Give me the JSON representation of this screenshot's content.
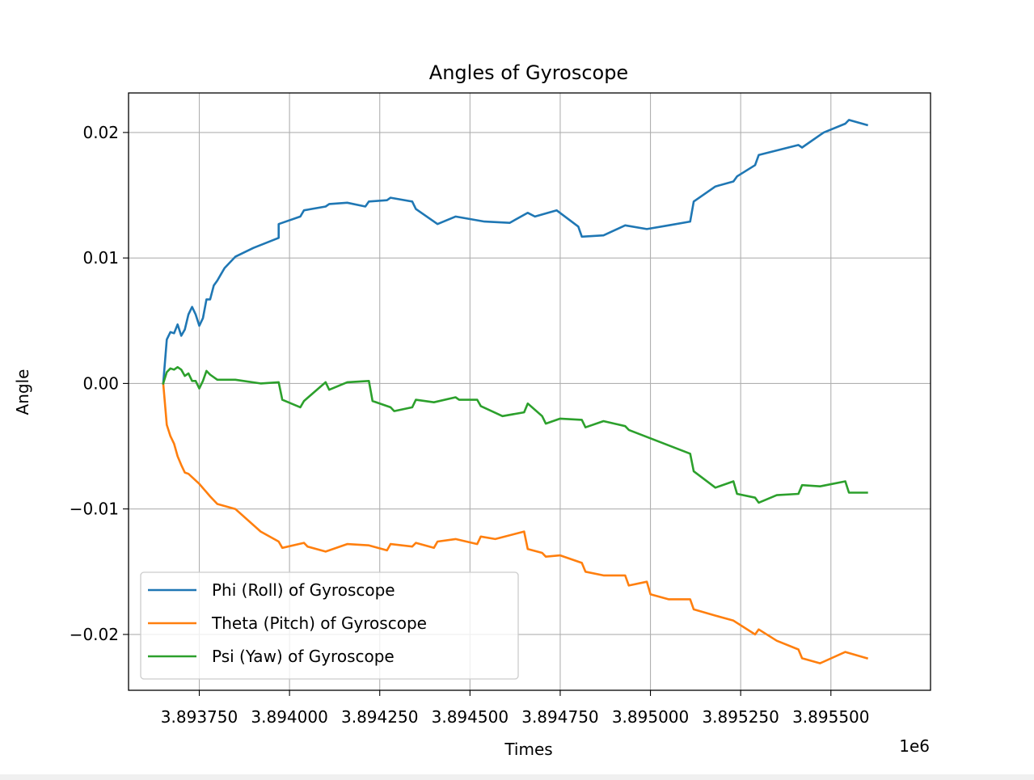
{
  "chart_data": {
    "type": "line",
    "title": "Angles of Gyroscope",
    "xlabel": "Times",
    "ylabel": "Angle",
    "x_offset_label": "1e6",
    "xlim": [
      3.893554,
      3.895776
    ],
    "ylim": [
      -0.02445,
      0.02315
    ],
    "xticks": [
      3.89375,
      3.894,
      3.89425,
      3.8945,
      3.89475,
      3.895,
      3.89525,
      3.8955
    ],
    "xtick_labels": [
      "3.893750",
      "3.894000",
      "3.894250",
      "3.894500",
      "3.894750",
      "3.895000",
      "3.895250",
      "3.895500"
    ],
    "yticks": [
      0.02,
      0.01,
      0.0,
      -0.01,
      -0.02
    ],
    "ytick_labels": [
      "0.02",
      "0.01",
      "0.00",
      "−0.01",
      "−0.02"
    ],
    "grid": true,
    "legend_position": "lower-left",
    "series": [
      {
        "name": "Phi (Roll) of Gyroscope",
        "color": "#1f77b4",
        "x": [
          3.89365,
          3.89366,
          3.89367,
          3.89368,
          3.89369,
          3.8937,
          3.89371,
          3.89372,
          3.89373,
          3.89374,
          3.89375,
          3.89376,
          3.89377,
          3.89378,
          3.89379,
          3.8938,
          3.89381,
          3.89382,
          3.89385,
          3.8939,
          3.89397,
          3.89397,
          3.89403,
          3.89404,
          3.8941,
          3.89411,
          3.89416,
          3.89421,
          3.89422,
          3.89427,
          3.89428,
          3.89434,
          3.89435,
          3.89441,
          3.89446,
          3.89454,
          3.89461,
          3.89466,
          3.89468,
          3.89474,
          3.8948,
          3.89481,
          3.89487,
          3.89493,
          3.89499,
          3.89505,
          3.89511,
          3.89512,
          3.89518,
          3.89523,
          3.89524,
          3.89529,
          3.8953,
          3.89541,
          3.89542,
          3.89548,
          3.89554,
          3.89555,
          3.8956
        ],
        "y": [
          0.0,
          0.0035,
          0.0041,
          0.004,
          0.0047,
          0.0038,
          0.0043,
          0.0055,
          0.0061,
          0.0055,
          0.0046,
          0.0052,
          0.0067,
          0.0067,
          0.0078,
          0.0082,
          0.0087,
          0.0092,
          0.0101,
          0.0108,
          0.0116,
          0.0127,
          0.0133,
          0.0138,
          0.0141,
          0.0143,
          0.0144,
          0.0141,
          0.0145,
          0.0146,
          0.0148,
          0.0145,
          0.0139,
          0.0127,
          0.0133,
          0.0129,
          0.0128,
          0.0136,
          0.0133,
          0.0138,
          0.0125,
          0.0117,
          0.0118,
          0.0126,
          0.0123,
          0.0126,
          0.0129,
          0.0145,
          0.0157,
          0.0161,
          0.0165,
          0.0174,
          0.0182,
          0.019,
          0.0188,
          0.02,
          0.0207,
          0.021,
          0.0206
        ]
      },
      {
        "name": "Theta (Pitch) of Gyroscope",
        "color": "#ff7f0e",
        "x": [
          3.89365,
          3.89366,
          3.89367,
          3.89368,
          3.89369,
          3.8937,
          3.89371,
          3.89372,
          3.89375,
          3.89378,
          3.8938,
          3.89385,
          3.89392,
          3.89397,
          3.89398,
          3.89404,
          3.89405,
          3.8941,
          3.89416,
          3.89422,
          3.89427,
          3.89428,
          3.89434,
          3.89435,
          3.8944,
          3.89441,
          3.89446,
          3.89452,
          3.89453,
          3.89457,
          3.89465,
          3.89466,
          3.8947,
          3.89471,
          3.89475,
          3.89481,
          3.89482,
          3.89487,
          3.89493,
          3.89494,
          3.89499,
          3.895,
          3.89505,
          3.89511,
          3.89512,
          3.89518,
          3.89523,
          3.89529,
          3.8953,
          3.89535,
          3.89541,
          3.89542,
          3.89547,
          3.89554,
          3.8956
        ],
        "y": [
          0.0,
          -0.0033,
          -0.0042,
          -0.0048,
          -0.0058,
          -0.0065,
          -0.0071,
          -0.0072,
          -0.008,
          -0.009,
          -0.0096,
          -0.01,
          -0.0118,
          -0.0126,
          -0.0131,
          -0.0127,
          -0.013,
          -0.0134,
          -0.0128,
          -0.0129,
          -0.0133,
          -0.0128,
          -0.013,
          -0.0127,
          -0.0131,
          -0.0126,
          -0.0124,
          -0.0128,
          -0.0122,
          -0.0124,
          -0.0118,
          -0.0132,
          -0.0135,
          -0.0138,
          -0.0137,
          -0.0143,
          -0.015,
          -0.0153,
          -0.0153,
          -0.0161,
          -0.0158,
          -0.0168,
          -0.0172,
          -0.0172,
          -0.018,
          -0.0185,
          -0.0189,
          -0.02,
          -0.0196,
          -0.0205,
          -0.0212,
          -0.0219,
          -0.0223,
          -0.0214,
          -0.0219
        ]
      },
      {
        "name": "Psi (Yaw) of Gyroscope",
        "color": "#2ca02c",
        "x": [
          3.89365,
          3.89366,
          3.89367,
          3.89368,
          3.89369,
          3.8937,
          3.89371,
          3.89372,
          3.89373,
          3.89374,
          3.89375,
          3.89376,
          3.89377,
          3.89378,
          3.8938,
          3.89385,
          3.89392,
          3.89397,
          3.89398,
          3.89403,
          3.89404,
          3.8941,
          3.89411,
          3.89416,
          3.89422,
          3.89423,
          3.89428,
          3.89429,
          3.89434,
          3.89435,
          3.8944,
          3.89446,
          3.89447,
          3.89452,
          3.89453,
          3.89459,
          3.89465,
          3.89466,
          3.8947,
          3.89471,
          3.89475,
          3.89481,
          3.89482,
          3.89487,
          3.89493,
          3.89494,
          3.89511,
          3.89512,
          3.89518,
          3.89523,
          3.89524,
          3.89529,
          3.8953,
          3.89535,
          3.89541,
          3.89542,
          3.89547,
          3.89554,
          3.89555,
          3.8956
        ],
        "y": [
          0.0,
          0.0009,
          0.0012,
          0.0011,
          0.0013,
          0.0011,
          0.0006,
          0.0008,
          0.0002,
          0.0002,
          -0.0004,
          0.0002,
          0.001,
          0.0007,
          0.0003,
          0.0003,
          0.0,
          0.0001,
          -0.0013,
          -0.0019,
          -0.0014,
          0.0001,
          -0.0005,
          0.0001,
          0.0002,
          -0.0014,
          -0.0019,
          -0.0022,
          -0.0019,
          -0.0013,
          -0.0015,
          -0.0011,
          -0.0013,
          -0.0013,
          -0.0018,
          -0.0026,
          -0.0023,
          -0.0016,
          -0.0026,
          -0.0032,
          -0.0028,
          -0.0029,
          -0.0035,
          -0.003,
          -0.0034,
          -0.0037,
          -0.0056,
          -0.007,
          -0.0083,
          -0.0078,
          -0.0088,
          -0.0091,
          -0.0095,
          -0.0089,
          -0.0088,
          -0.0081,
          -0.0082,
          -0.0078,
          -0.0087,
          -0.0087
        ]
      }
    ]
  }
}
